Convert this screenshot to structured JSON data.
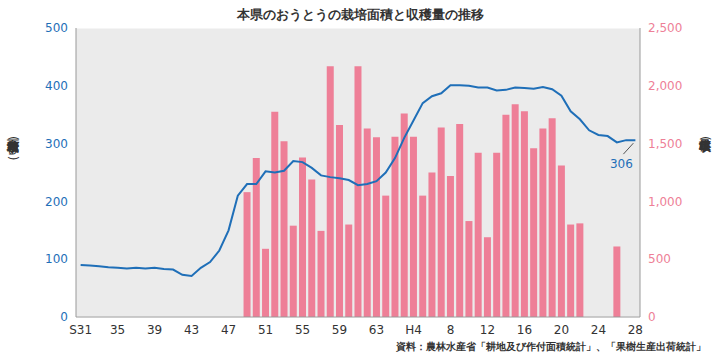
{
  "chart_data": {
    "type": "bar_line",
    "title": "本県のおうとうの栽培面積と収穫量の推移",
    "y_label": "栽培面積",
    "y_unit": "(ha)",
    "y2_label": "収穫量",
    "y2_unit": "(t)",
    "source": "資料：農林水産省「耕地及び作付面積統計」、「果樹生産出荷統計」",
    "categories": [
      "S31",
      null,
      null,
      null,
      "35",
      null,
      null,
      null,
      "39",
      null,
      null,
      null,
      "43",
      null,
      null,
      null,
      "47",
      null,
      null,
      null,
      "51",
      null,
      null,
      null,
      "55",
      null,
      null,
      null,
      "59",
      null,
      null,
      null,
      "63",
      null,
      null,
      null,
      "H4",
      null,
      null,
      null,
      "8",
      null,
      null,
      null,
      "12",
      null,
      null,
      null,
      "16",
      null,
      null,
      null,
      "20",
      null,
      null,
      null,
      "24",
      null,
      null,
      null,
      "28"
    ],
    "series": [
      {
        "name": "収穫量",
        "type": "bar",
        "axis": "y2",
        "color": "#ee7f97",
        "values": [
          null,
          null,
          null,
          null,
          null,
          null,
          null,
          null,
          null,
          null,
          null,
          null,
          null,
          null,
          null,
          null,
          null,
          null,
          1080,
          1375,
          590,
          1775,
          1520,
          790,
          1380,
          1190,
          745,
          2170,
          1660,
          800,
          2170,
          1630,
          1555,
          1050,
          1560,
          1760,
          1560,
          1050,
          1250,
          1640,
          1220,
          1670,
          830,
          1420,
          690,
          1420,
          1750,
          1840,
          1780,
          1460,
          1630,
          1720,
          1310,
          800,
          810,
          null,
          null,
          null,
          610,
          null,
          null
        ]
      },
      {
        "name": "栽培面積",
        "type": "line",
        "axis": "y",
        "color": "#1f6fb8",
        "values": [
          90,
          89,
          88,
          86,
          85,
          84,
          85,
          84,
          85,
          83,
          82,
          73,
          71,
          85,
          95,
          115,
          150,
          210,
          230,
          230,
          252,
          250,
          253,
          270,
          268,
          258,
          245,
          242,
          240,
          237,
          228,
          230,
          235,
          250,
          275,
          310,
          340,
          370,
          382,
          387,
          401,
          401,
          400,
          397,
          397,
          392,
          393,
          397,
          396,
          395,
          398,
          394,
          383,
          356,
          342,
          323,
          315,
          313,
          302,
          306,
          306
        ]
      }
    ],
    "ylim": [
      0,
      500
    ],
    "yticks": [
      0,
      100,
      200,
      300,
      400,
      500
    ],
    "y2lim": [
      0,
      2500
    ],
    "y2ticks": [
      0,
      500,
      {
        "value": 1000,
        "label": "1,000"
      },
      {
        "value": 1500,
        "label": "1,500"
      },
      {
        "value": 2000,
        "label": "2,000"
      },
      {
        "value": 2500,
        "label": "2,500"
      }
    ],
    "annotations": [
      {
        "text": "306",
        "x": "28",
        "y": 306,
        "axis": "y"
      }
    ],
    "grid": true
  }
}
